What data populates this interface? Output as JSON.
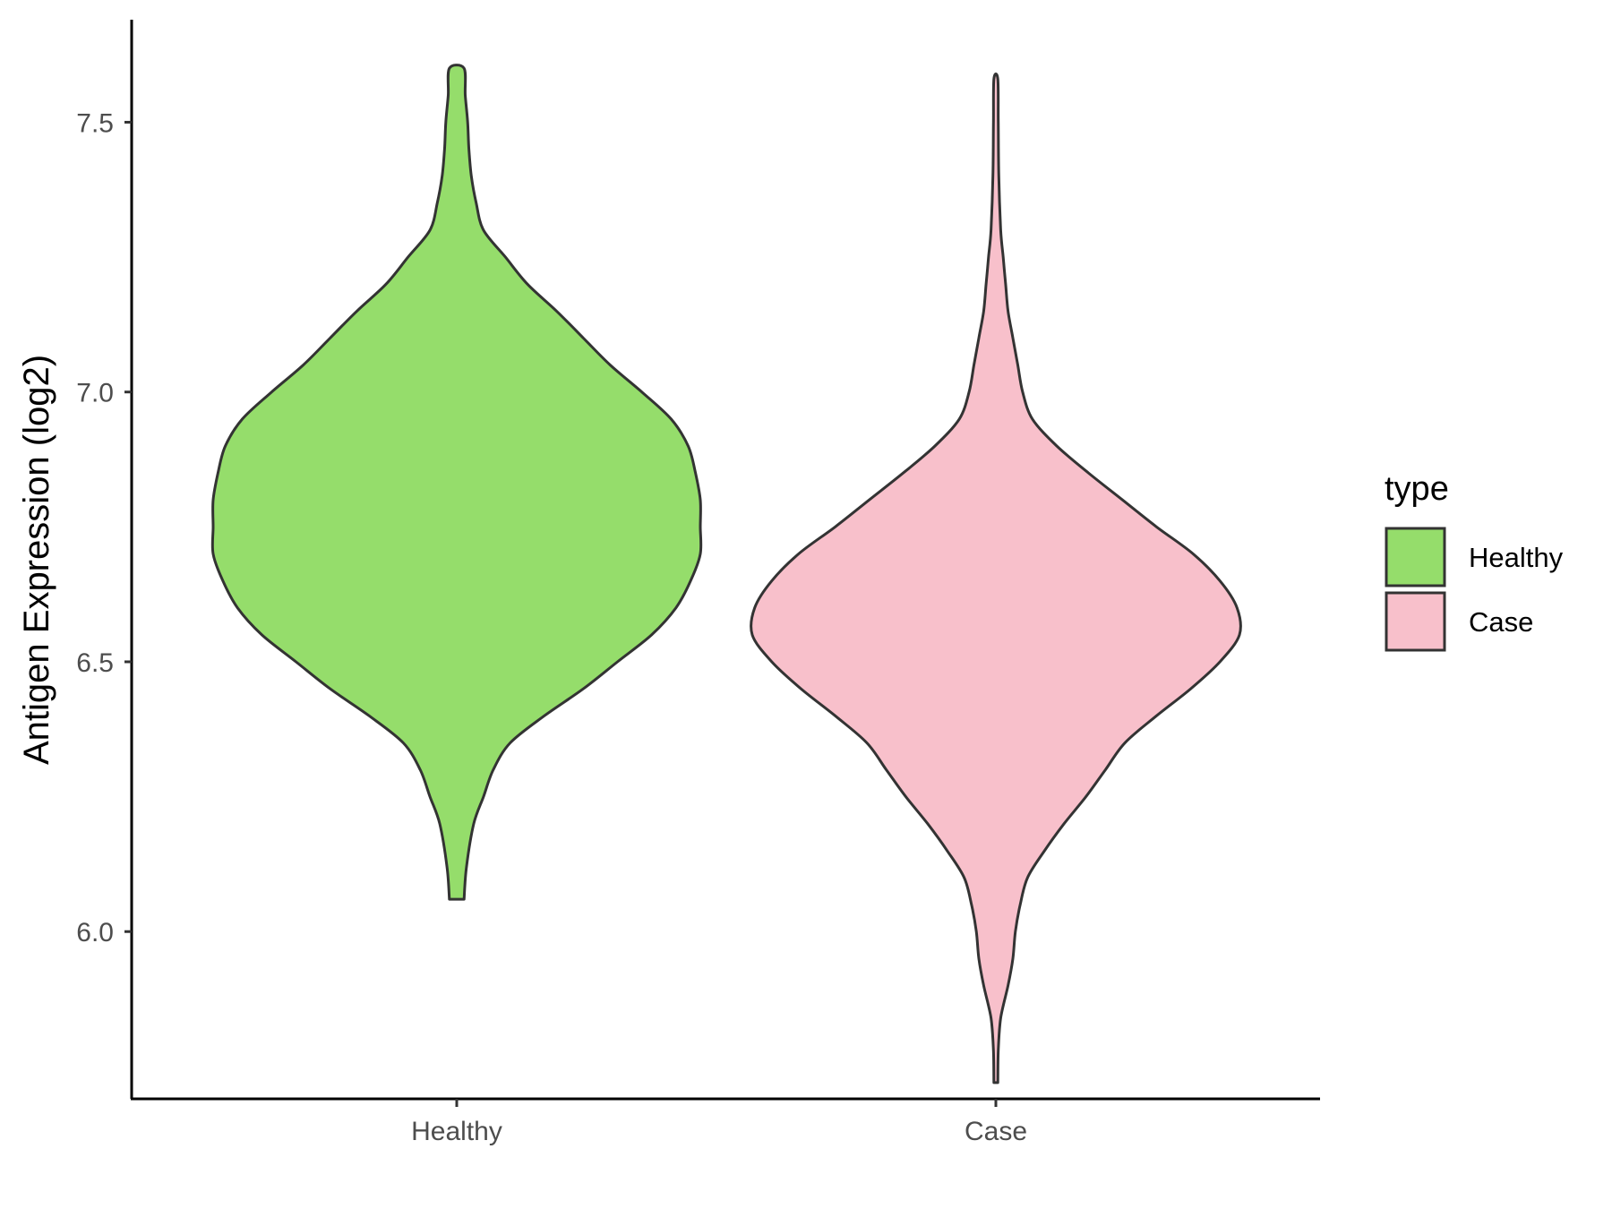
{
  "chart_data": {
    "type": "violin",
    "title": "",
    "xlabel": "",
    "ylabel": "Antigen Expression (log2)",
    "ylim": [
      5.69,
      7.69
    ],
    "yticks": [
      6.0,
      6.5,
      7.0,
      7.5
    ],
    "ytick_labels": [
      "6.0",
      "6.5",
      "7.0",
      "7.5"
    ],
    "categories": [
      "Healthy",
      "Case"
    ],
    "grid": false,
    "legend": {
      "title": "type",
      "position": "right",
      "entries": [
        {
          "label": "Healthy",
          "color": "#95dd6b"
        },
        {
          "label": "Case",
          "color": "#f8c0cb"
        }
      ]
    },
    "series": [
      {
        "category": "Healthy",
        "color": "#95dd6b",
        "min": 6.06,
        "max": 7.6,
        "density_profile": [
          [
            6.06,
            0.03
          ],
          [
            6.12,
            0.04
          ],
          [
            6.2,
            0.07
          ],
          [
            6.25,
            0.11
          ],
          [
            6.3,
            0.15
          ],
          [
            6.35,
            0.22
          ],
          [
            6.4,
            0.36
          ],
          [
            6.45,
            0.52
          ],
          [
            6.5,
            0.66
          ],
          [
            6.55,
            0.8
          ],
          [
            6.6,
            0.9
          ],
          [
            6.65,
            0.96
          ],
          [
            6.7,
            1.0
          ],
          [
            6.75,
            1.0
          ],
          [
            6.8,
            1.0
          ],
          [
            6.85,
            0.98
          ],
          [
            6.9,
            0.95
          ],
          [
            6.95,
            0.88
          ],
          [
            7.0,
            0.76
          ],
          [
            7.05,
            0.63
          ],
          [
            7.1,
            0.52
          ],
          [
            7.15,
            0.41
          ],
          [
            7.2,
            0.29
          ],
          [
            7.25,
            0.2
          ],
          [
            7.3,
            0.11
          ],
          [
            7.35,
            0.08
          ],
          [
            7.4,
            0.06
          ],
          [
            7.45,
            0.05
          ],
          [
            7.5,
            0.045
          ],
          [
            7.55,
            0.035
          ],
          [
            7.6,
            0.03
          ]
        ]
      },
      {
        "category": "Case",
        "color": "#f8c0cb",
        "min": 5.72,
        "max": 7.58,
        "density_profile": [
          [
            5.72,
            0.008
          ],
          [
            5.78,
            0.01
          ],
          [
            5.84,
            0.02
          ],
          [
            5.9,
            0.05
          ],
          [
            5.95,
            0.07
          ],
          [
            6.0,
            0.08
          ],
          [
            6.05,
            0.1
          ],
          [
            6.1,
            0.13
          ],
          [
            6.15,
            0.2
          ],
          [
            6.2,
            0.28
          ],
          [
            6.25,
            0.37
          ],
          [
            6.3,
            0.45
          ],
          [
            6.35,
            0.53
          ],
          [
            6.4,
            0.66
          ],
          [
            6.45,
            0.8
          ],
          [
            6.5,
            0.92
          ],
          [
            6.55,
            1.0
          ],
          [
            6.6,
            0.99
          ],
          [
            6.65,
            0.92
          ],
          [
            6.7,
            0.81
          ],
          [
            6.75,
            0.66
          ],
          [
            6.8,
            0.52
          ],
          [
            6.85,
            0.38
          ],
          [
            6.9,
            0.25
          ],
          [
            6.95,
            0.15
          ],
          [
            7.0,
            0.11
          ],
          [
            7.05,
            0.09
          ],
          [
            7.1,
            0.07
          ],
          [
            7.15,
            0.05
          ],
          [
            7.2,
            0.04
          ],
          [
            7.25,
            0.03
          ],
          [
            7.3,
            0.02
          ],
          [
            7.4,
            0.012
          ],
          [
            7.5,
            0.01
          ],
          [
            7.58,
            0.008
          ]
        ]
      }
    ]
  }
}
